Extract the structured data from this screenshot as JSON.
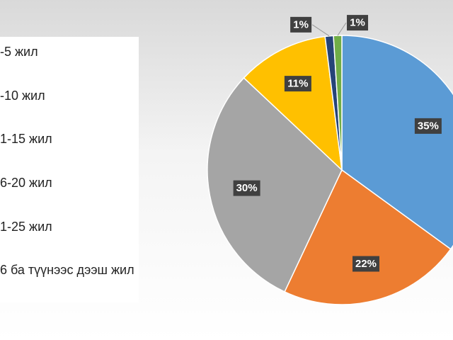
{
  "chart_data": {
    "type": "pie",
    "categories": [
      "-5 жил",
      "-10 жил",
      "1-15 жил",
      "6-20 жил",
      "1-25 жил",
      "6 ба түүнээс дээш жил"
    ],
    "values": [
      35,
      22,
      30,
      11,
      1,
      1
    ],
    "value_labels": [
      "35%",
      "22%",
      "30%",
      "11%",
      "1%",
      "1%"
    ],
    "colors": [
      "#5b9bd5",
      "#ed7d31",
      "#a5a5a5",
      "#ffc000",
      "#264478",
      "#70ad47"
    ]
  }
}
